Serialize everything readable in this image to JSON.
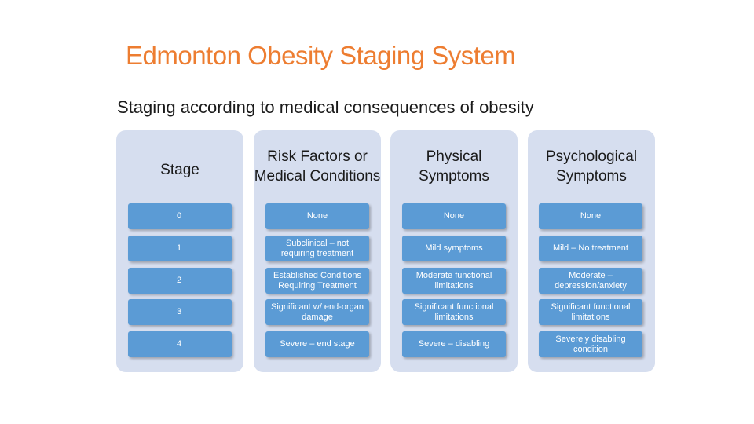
{
  "title": "Edmonton Obesity Staging System",
  "subtitle": "Staging according to medical consequences of obesity",
  "columns": [
    {
      "header": "Stage",
      "cells": [
        "0",
        "1",
        "2",
        "3",
        "4"
      ]
    },
    {
      "header": "Risk Factors or Medical Conditions",
      "cells": [
        "None",
        "Subclinical – not requiring treatment",
        "Established Conditions Requiring Treatment",
        "Significant w/ end-organ damage",
        "Severe – end stage"
      ]
    },
    {
      "header": "Physical Symptoms",
      "cells": [
        "None",
        "Mild symptoms",
        "Moderate functional limitations",
        "Significant functional limitations",
        "Severe – disabling"
      ]
    },
    {
      "header": "Psychological Symptoms",
      "cells": [
        "None",
        "Mild – No treatment",
        "Moderate – depression/anxiety",
        "Significant functional limitations",
        "Severely disabling condition"
      ]
    }
  ],
  "colors": {
    "title": "#ED7D31",
    "column_background": "#D6DEEF",
    "cell_fill": "#5B9BD5",
    "cell_text": "#FFFFFF"
  }
}
